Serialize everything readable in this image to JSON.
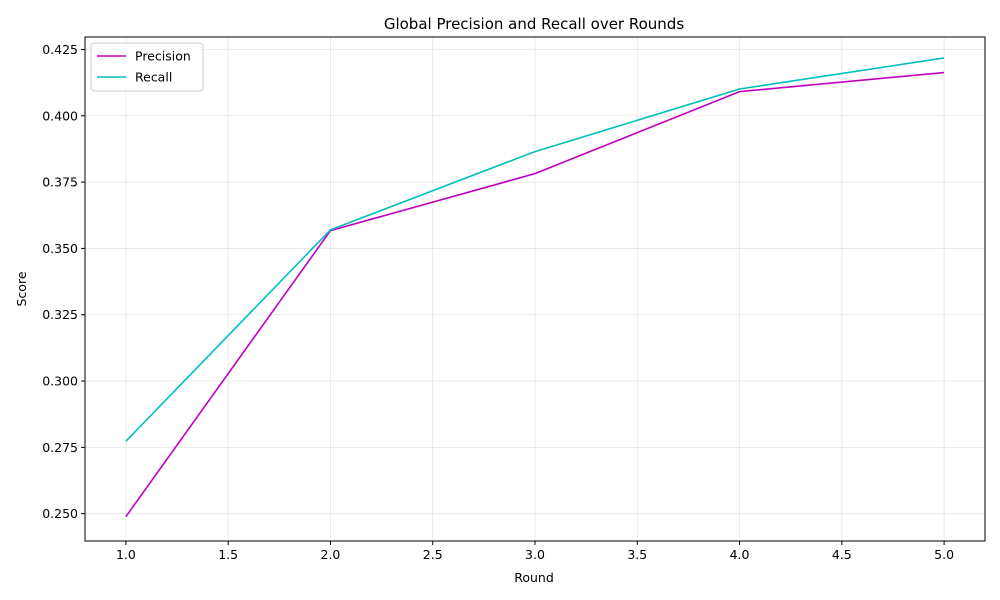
{
  "chart_data": {
    "type": "line",
    "title": "Global Precision and Recall over Rounds",
    "xlabel": "Round",
    "ylabel": "Score",
    "x": [
      1.0,
      2.0,
      3.0,
      4.0,
      5.0
    ],
    "series": [
      {
        "name": "Precision",
        "color": "#bf00bf",
        "values": [
          0.2489,
          0.3567,
          0.3782,
          0.4091,
          0.4163
        ]
      },
      {
        "name": "Recall",
        "color": "#00bfbf",
        "values": [
          0.2773,
          0.357,
          0.3865,
          0.4101,
          0.4218
        ]
      }
    ],
    "xlim": [
      0.8,
      5.2
    ],
    "ylim": [
      0.2397,
      0.4297
    ],
    "xticks": [
      1.0,
      1.5,
      2.0,
      2.5,
      3.0,
      3.5,
      4.0,
      4.5,
      5.0
    ],
    "xtick_labels": [
      "1.0",
      "1.5",
      "2.0",
      "2.5",
      "3.0",
      "3.5",
      "4.0",
      "4.5",
      "5.0"
    ],
    "yticks": [
      0.25,
      0.275,
      0.3,
      0.325,
      0.35,
      0.375,
      0.4,
      0.425
    ],
    "ytick_labels": [
      "0.250",
      "0.275",
      "0.300",
      "0.325",
      "0.350",
      "0.375",
      "0.400",
      "0.425"
    ],
    "grid": true,
    "legend_position": "upper-left"
  }
}
